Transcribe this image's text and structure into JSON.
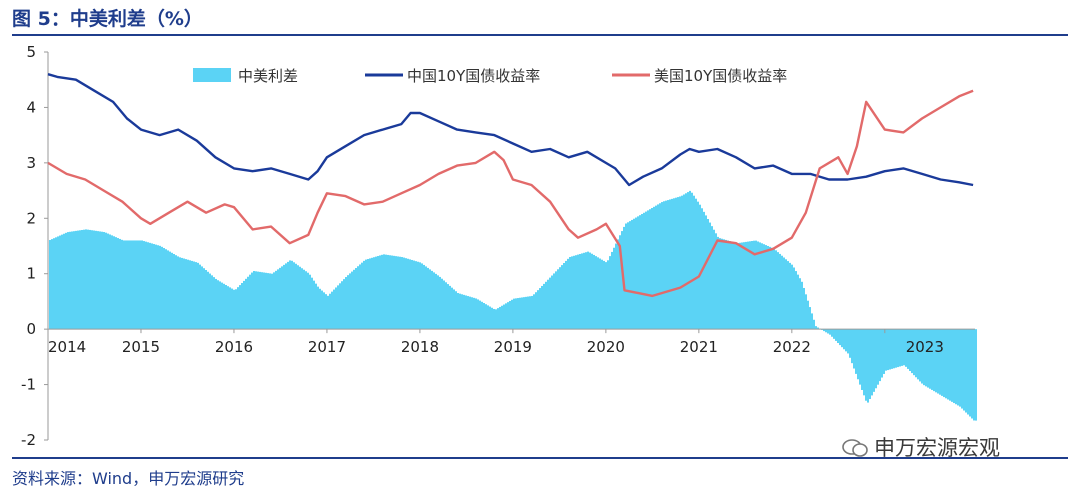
{
  "title": "图 5：中美利差（%）",
  "source": "资料来源：Wind，申万宏源研究",
  "watermark": "申万宏源宏观",
  "colors": {
    "spread": "#5bd3f5",
    "china": "#1a3a9a",
    "us": "#e26a6a",
    "rule": "#1f3d8c"
  },
  "chart_data": {
    "type": "line",
    "title": "图 5：中美利差（%）",
    "ylim": [
      -2,
      5
    ],
    "yticks": [
      "5",
      "4",
      "3",
      "2",
      "1",
      "0",
      "-1",
      "-2"
    ],
    "xlim": [
      2014.0,
      2023.97
    ],
    "xticks": [
      "2014",
      "2015",
      "2016",
      "2017",
      "2018",
      "2019",
      "2020",
      "2021",
      "2022",
      "2023"
    ],
    "legend": [
      "中美利差",
      "中国10Y国债收益率",
      "美国10Y国债收益率"
    ],
    "series": [
      {
        "name": "中国10Y国债收益率",
        "x": [
          2014.0,
          2014.1,
          2014.3,
          2014.5,
          2014.7,
          2014.85,
          2015.0,
          2015.2,
          2015.4,
          2015.6,
          2015.8,
          2016.0,
          2016.2,
          2016.4,
          2016.6,
          2016.8,
          2016.9,
          2017.0,
          2017.2,
          2017.4,
          2017.6,
          2017.8,
          2017.9,
          2018.0,
          2018.2,
          2018.4,
          2018.6,
          2018.8,
          2019.0,
          2019.2,
          2019.4,
          2019.6,
          2019.8,
          2020.0,
          2020.1,
          2020.25,
          2020.4,
          2020.6,
          2020.8,
          2020.9,
          2021.0,
          2021.2,
          2021.4,
          2021.6,
          2021.8,
          2022.0,
          2022.2,
          2022.4,
          2022.6,
          2022.8,
          2023.0,
          2023.2,
          2023.4,
          2023.6,
          2023.8,
          2023.95
        ],
        "values": [
          4.6,
          4.55,
          4.5,
          4.3,
          4.1,
          3.8,
          3.6,
          3.5,
          3.6,
          3.4,
          3.1,
          2.9,
          2.85,
          2.9,
          2.8,
          2.7,
          2.85,
          3.1,
          3.3,
          3.5,
          3.6,
          3.7,
          3.9,
          3.9,
          3.75,
          3.6,
          3.55,
          3.5,
          3.35,
          3.2,
          3.25,
          3.1,
          3.2,
          3.0,
          2.9,
          2.6,
          2.75,
          2.9,
          3.15,
          3.25,
          3.2,
          3.25,
          3.1,
          2.9,
          2.95,
          2.8,
          2.8,
          2.7,
          2.7,
          2.75,
          2.85,
          2.9,
          2.8,
          2.7,
          2.65,
          2.6
        ]
      },
      {
        "name": "美国10Y国债收益率",
        "x": [
          2014.0,
          2014.2,
          2014.4,
          2014.6,
          2014.8,
          2015.0,
          2015.1,
          2015.3,
          2015.5,
          2015.7,
          2015.9,
          2016.0,
          2016.2,
          2016.4,
          2016.6,
          2016.8,
          2016.9,
          2017.0,
          2017.2,
          2017.4,
          2017.6,
          2017.8,
          2018.0,
          2018.2,
          2018.4,
          2018.6,
          2018.8,
          2018.9,
          2019.0,
          2019.2,
          2019.4,
          2019.6,
          2019.7,
          2019.9,
          2020.0,
          2020.15,
          2020.2,
          2020.35,
          2020.5,
          2020.6,
          2020.8,
          2021.0,
          2021.2,
          2021.4,
          2021.6,
          2021.8,
          2022.0,
          2022.15,
          2022.3,
          2022.5,
          2022.6,
          2022.7,
          2022.8,
          2023.0,
          2023.2,
          2023.4,
          2023.6,
          2023.8,
          2023.95
        ],
        "values": [
          3.0,
          2.8,
          2.7,
          2.5,
          2.3,
          2.0,
          1.9,
          2.1,
          2.3,
          2.1,
          2.25,
          2.2,
          1.8,
          1.85,
          1.55,
          1.7,
          2.1,
          2.45,
          2.4,
          2.25,
          2.3,
          2.45,
          2.6,
          2.8,
          2.95,
          3.0,
          3.2,
          3.05,
          2.7,
          2.6,
          2.3,
          1.8,
          1.65,
          1.8,
          1.9,
          1.5,
          0.7,
          0.65,
          0.6,
          0.65,
          0.75,
          0.95,
          1.6,
          1.55,
          1.35,
          1.45,
          1.65,
          2.1,
          2.9,
          3.1,
          2.8,
          3.3,
          4.1,
          3.6,
          3.55,
          3.8,
          4.0,
          4.2,
          4.3
        ]
      }
    ],
    "spread": {
      "name": "中美利差",
      "x": [
        2014.0,
        2014.2,
        2014.4,
        2014.6,
        2014.8,
        2015.0,
        2015.2,
        2015.4,
        2015.6,
        2015.8,
        2016.0,
        2016.2,
        2016.4,
        2016.6,
        2016.8,
        2016.9,
        2017.0,
        2017.2,
        2017.4,
        2017.6,
        2017.8,
        2018.0,
        2018.2,
        2018.4,
        2018.6,
        2018.8,
        2019.0,
        2019.2,
        2019.4,
        2019.6,
        2019.8,
        2020.0,
        2020.2,
        2020.4,
        2020.6,
        2020.8,
        2020.9,
        2021.0,
        2021.2,
        2021.4,
        2021.6,
        2021.8,
        2022.0,
        2022.1,
        2022.25,
        2022.4,
        2022.6,
        2022.8,
        2023.0,
        2023.2,
        2023.4,
        2023.6,
        2023.8,
        2023.95
      ],
      "values": [
        1.6,
        1.75,
        1.8,
        1.75,
        1.6,
        1.6,
        1.5,
        1.3,
        1.2,
        0.9,
        0.7,
        1.05,
        1.0,
        1.25,
        1.0,
        0.75,
        0.6,
        0.95,
        1.25,
        1.35,
        1.3,
        1.2,
        0.95,
        0.65,
        0.55,
        0.35,
        0.55,
        0.6,
        0.95,
        1.3,
        1.4,
        1.2,
        1.9,
        2.1,
        2.3,
        2.4,
        2.5,
        2.25,
        1.65,
        1.55,
        1.6,
        1.45,
        1.15,
        0.85,
        0.05,
        -0.1,
        -0.45,
        -1.35,
        -0.75,
        -0.65,
        -1.0,
        -1.2,
        -1.4,
        -1.65
      ]
    }
  }
}
